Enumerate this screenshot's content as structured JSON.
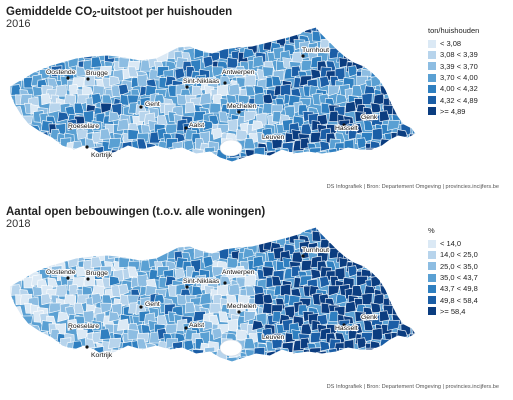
{
  "maps": [
    {
      "title_main": "Gemiddelde CO",
      "title_sub": "2",
      "title_rest": "-uitstoot per huishouden",
      "year": "2016",
      "legend_title": "ton/huishouden",
      "legend": [
        {
          "label": "< 3,08",
          "color": "#dbe9f5"
        },
        {
          "label": "3,08 < 3,39",
          "color": "#b7d4ec"
        },
        {
          "label": "3,39 < 3,70",
          "color": "#8dbde2"
        },
        {
          "label": "3,70 < 4,00",
          "color": "#5aa0d3"
        },
        {
          "label": "4,00 < 4,32",
          "color": "#2f7fc0"
        },
        {
          "label": "4,32 < 4,89",
          "color": "#1b5ea6"
        },
        {
          "label": ">= 4,89",
          "color": "#0b3d80"
        }
      ],
      "source": "DS Infografiek | Bron: Departement Omgeving | provincies.incijfers.be"
    },
    {
      "title_main": "Aantal open bebouwingen (t.o.v. alle woningen)",
      "title_sub": "",
      "title_rest": "",
      "year": "2018",
      "legend_title": "%",
      "legend": [
        {
          "label": "< 14,0",
          "color": "#dbe9f5"
        },
        {
          "label": "14,0 < 25,0",
          "color": "#b7d4ec"
        },
        {
          "label": "25,0 < 35,0",
          "color": "#8dbde2"
        },
        {
          "label": "35,0 < 43,7",
          "color": "#5aa0d3"
        },
        {
          "label": "43,7 < 49,8",
          "color": "#2f7fc0"
        },
        {
          "label": "49,8 < 58,4",
          "color": "#1b5ea6"
        },
        {
          "label": ">= 58,4",
          "color": "#0b3d80"
        }
      ],
      "source": "DS Infografiek | Bron: Departement Omgeving | provincies.incijfers.be"
    }
  ],
  "cities": [
    {
      "name": "Turnhout"
    },
    {
      "name": "Oostende"
    },
    {
      "name": "Brugge"
    },
    {
      "name": "Sint-Niklaas"
    },
    {
      "name": "Antwerpen"
    },
    {
      "name": "Gent"
    },
    {
      "name": "Mechelen"
    },
    {
      "name": "Roeselare"
    },
    {
      "name": "Aalst"
    },
    {
      "name": "Hasselt"
    },
    {
      "name": "Genk"
    },
    {
      "name": "Leuven"
    },
    {
      "name": "Kortrijk"
    }
  ]
}
